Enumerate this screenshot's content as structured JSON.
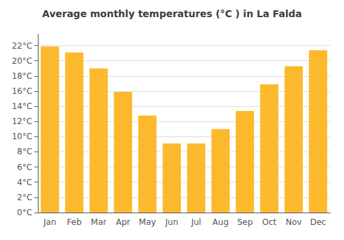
{
  "chart_data": {
    "type": "bar",
    "title": "Average monthly temperatures (°C ) in La Falda",
    "categories": [
      "Jan",
      "Feb",
      "Mar",
      "Apr",
      "May",
      "Jun",
      "Jul",
      "Aug",
      "Sep",
      "Oct",
      "Nov",
      "Dec"
    ],
    "values": [
      21.9,
      21.1,
      19.0,
      15.9,
      12.8,
      9.1,
      9.1,
      11.0,
      13.4,
      16.9,
      19.3,
      21.4
    ],
    "color": "#FDB92E",
    "ylim": [
      0,
      23.5
    ],
    "yticks": [
      {
        "value": 0,
        "label": "0°C"
      },
      {
        "value": 2,
        "label": "2°C"
      },
      {
        "value": 4,
        "label": "4°C"
      },
      {
        "value": 6,
        "label": "6°C"
      },
      {
        "value": 8,
        "label": "8°C"
      },
      {
        "value": 10,
        "label": "10°C"
      },
      {
        "value": 12,
        "label": "12°C"
      },
      {
        "value": 14,
        "label": "14°C"
      },
      {
        "value": 16,
        "label": "16°C"
      },
      {
        "value": 18,
        "label": "18°C"
      },
      {
        "value": 20,
        "label": "20°C"
      },
      {
        "value": 22,
        "label": "22°C"
      }
    ],
    "grid": true
  }
}
